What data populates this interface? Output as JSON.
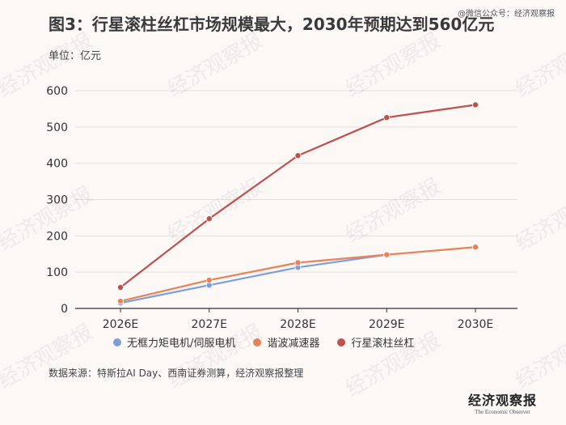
{
  "header": {
    "title": "图3：行星滚柱丝杠市场规模最大，2030年预期达到560亿元",
    "wechat": "@微信公众号：经济观察报"
  },
  "chart_data": {
    "type": "line",
    "unit_label": "单位：亿元",
    "categories": [
      "2026E",
      "2027E",
      "2028E",
      "2029E",
      "2030E"
    ],
    "ylim": [
      0,
      600
    ],
    "yticks": [
      0,
      100,
      200,
      300,
      400,
      500,
      600
    ],
    "grid": "horizontal",
    "legend_position": "bottom",
    "series": [
      {
        "name": "无框力矩电机/伺服电机",
        "color": "#7f9ed8",
        "values": [
          15,
          64,
          113,
          148,
          null
        ]
      },
      {
        "name": "谐波减速器",
        "color": "#e8825a",
        "values": [
          20,
          78,
          126,
          148,
          169
        ]
      },
      {
        "name": "行星滚柱丝杠",
        "color": "#c0504d",
        "values": [
          58,
          247,
          421,
          526,
          561
        ]
      }
    ]
  },
  "footer": {
    "source": "数据来源：特斯拉AI Day、西南证券测算，经济观察报整理",
    "logo_cn": "经济观察报",
    "logo_en": "The Economic Observer"
  },
  "watermark": {
    "text": "经济观察报"
  }
}
